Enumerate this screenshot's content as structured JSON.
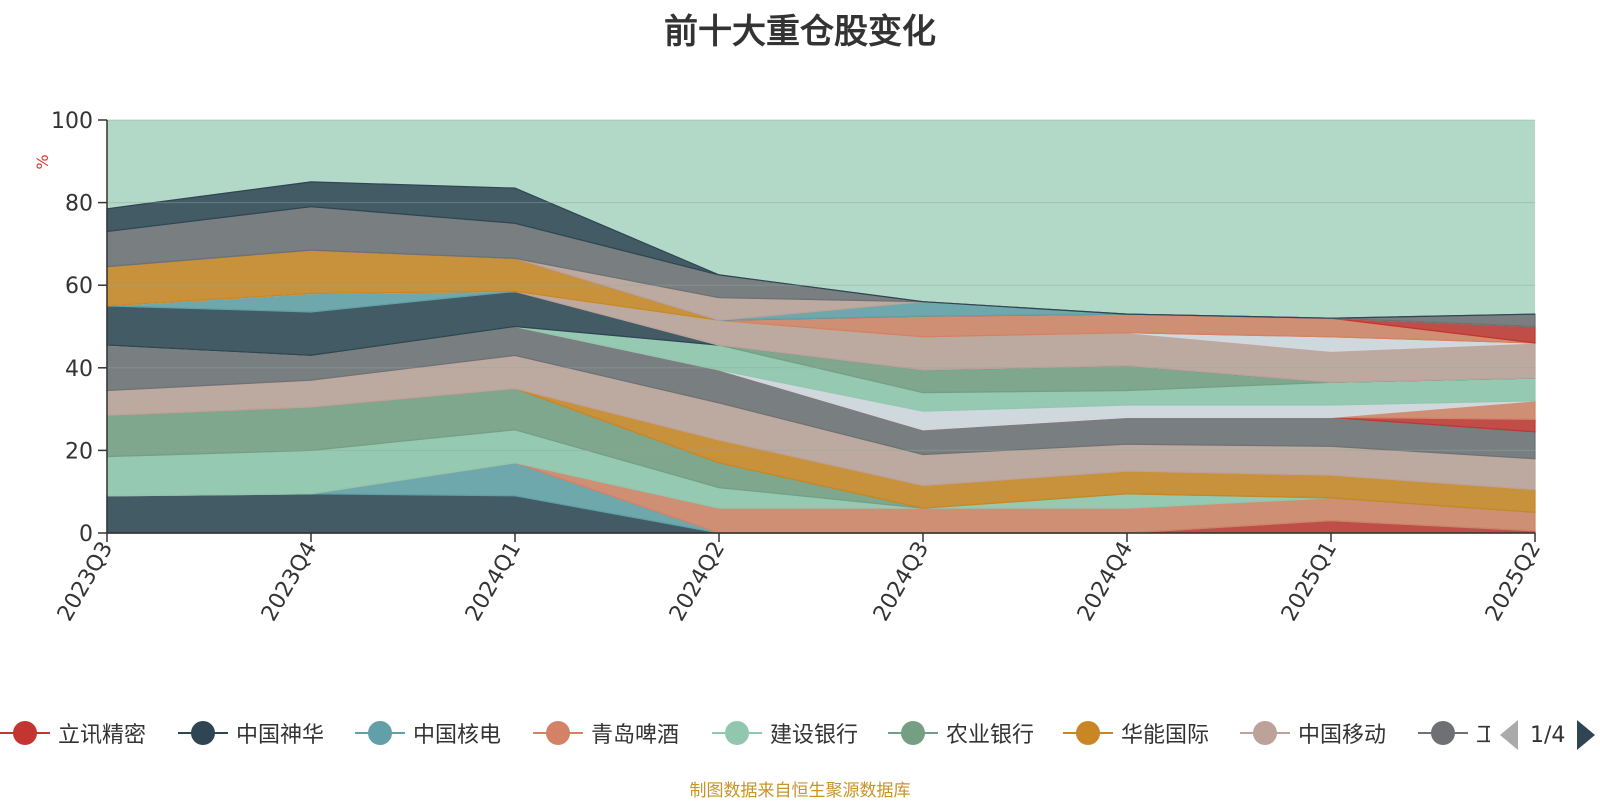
{
  "title": "前十大重仓股变化",
  "footer": "制图数据来自恒生聚源数据库",
  "legend_page": "1/4",
  "colors": {
    "background_area": "#b2d8c8",
    "axis": "#333333",
    "grid": "#bfcfc8",
    "ylabel": "#e0332d",
    "footer": "#c89425"
  },
  "legend": [
    {
      "name": "立讯精密",
      "color": "#c23531"
    },
    {
      "name": "中国神华",
      "color": "#2f4554"
    },
    {
      "name": "中国核电",
      "color": "#61a0a8"
    },
    {
      "name": "青岛啤酒",
      "color": "#d48265"
    },
    {
      "name": "建设银行",
      "color": "#91c7ae"
    },
    {
      "name": "农业银行",
      "color": "#749f83"
    },
    {
      "name": "华能国际",
      "color": "#ca8622"
    },
    {
      "name": "中国移动",
      "color": "#bda29a"
    },
    {
      "name": "工",
      "color": "#6e7074"
    }
  ],
  "chart_data": {
    "type": "area",
    "stacked": true,
    "title": "前十大重仓股变化",
    "ylabel": "%",
    "xlabel": "",
    "ylim": [
      0,
      100
    ],
    "yticks": [
      0,
      20,
      40,
      60,
      80,
      100
    ],
    "grid": true,
    "legend_position": "bottom",
    "categories": [
      "2023Q3",
      "2023Q4",
      "2024Q1",
      "2024Q2",
      "2024Q3",
      "2024Q4",
      "2025Q1",
      "2025Q2"
    ],
    "bands": [
      {
        "color": "#c23531",
        "values": [
          0,
          0,
          0,
          0,
          0,
          0,
          3,
          0.5
        ]
      },
      {
        "color": "#2f4554",
        "values": [
          9,
          9.5,
          9,
          0,
          0,
          0,
          0,
          0
        ]
      },
      {
        "color": "#61a0a8",
        "values": [
          0,
          0,
          8,
          0,
          0,
          0,
          0,
          0
        ]
      },
      {
        "color": "#d48265",
        "values": [
          0,
          0,
          0,
          6,
          6,
          6,
          5.5,
          4.5
        ]
      },
      {
        "color": "#91c7ae",
        "values": [
          9.5,
          10.5,
          8,
          5,
          0,
          3.5,
          0,
          0
        ]
      },
      {
        "color": "#749f83",
        "values": [
          10,
          10.5,
          10,
          6,
          0,
          0,
          0,
          0
        ]
      },
      {
        "color": "#ca8622",
        "values": [
          0,
          0,
          0,
          5.5,
          5.5,
          5.5,
          5.5,
          5.5
        ]
      },
      {
        "color": "#bda29a",
        "values": [
          6,
          6.5,
          8,
          9,
          7.5,
          6.5,
          7,
          7.5
        ]
      },
      {
        "color": "#6e7074",
        "values": [
          11,
          6,
          7,
          8,
          6,
          6.5,
          7,
          6.5
        ]
      },
      {
        "color": "#c23531",
        "values": [
          0,
          0,
          0,
          0,
          0,
          0,
          0,
          3
        ]
      },
      {
        "color": "#d48265",
        "values": [
          0,
          0,
          0,
          0,
          0,
          0,
          0,
          4.5
        ]
      },
      {
        "color": "#d4d8e0",
        "values": [
          0,
          0,
          0,
          0,
          4.5,
          3,
          3,
          0
        ]
      },
      {
        "color": "#91c7ae",
        "values": [
          0,
          0,
          0,
          6,
          4.5,
          3.5,
          5.5,
          5.5
        ]
      },
      {
        "color": "#749f83",
        "values": [
          0,
          0,
          0,
          0,
          5.5,
          6,
          0,
          0
        ]
      },
      {
        "color": "#2f4554",
        "values": [
          9.5,
          10.5,
          8.5,
          0,
          0,
          0,
          0,
          0
        ]
      },
      {
        "color": "#61a0a8",
        "values": [
          0,
          4.5,
          0,
          0,
          0,
          0,
          0,
          0
        ]
      },
      {
        "color": "#bda29a",
        "values": [
          0,
          0,
          0,
          6,
          8,
          8,
          7.5,
          8.5
        ]
      },
      {
        "color": "#d4d8e0",
        "values": [
          0,
          0,
          0,
          0,
          0,
          0,
          3.5,
          0
        ]
      },
      {
        "color": "#ca8622",
        "values": [
          9.5,
          10.5,
          8,
          0,
          0,
          0,
          0,
          0
        ]
      },
      {
        "color": "#d48265",
        "values": [
          0,
          0,
          0,
          0,
          5,
          4.5,
          4.5,
          0
        ]
      },
      {
        "color": "#c23531",
        "values": [
          0,
          0,
          0,
          0,
          0,
          0,
          0,
          4
        ]
      },
      {
        "color": "#61a0a8",
        "values": [
          0,
          0,
          0,
          0,
          3.5,
          0,
          0,
          0
        ]
      },
      {
        "color": "#bda29a",
        "values": [
          0,
          0,
          0,
          5.5,
          0,
          0,
          0,
          0
        ]
      },
      {
        "color": "#6e7074",
        "values": [
          8.5,
          10.5,
          8.5,
          5.5,
          0,
          0,
          0,
          3
        ]
      },
      {
        "color": "#2f4554",
        "values": [
          5.5,
          6,
          8.5,
          0,
          0,
          0,
          0,
          0
        ]
      }
    ]
  }
}
